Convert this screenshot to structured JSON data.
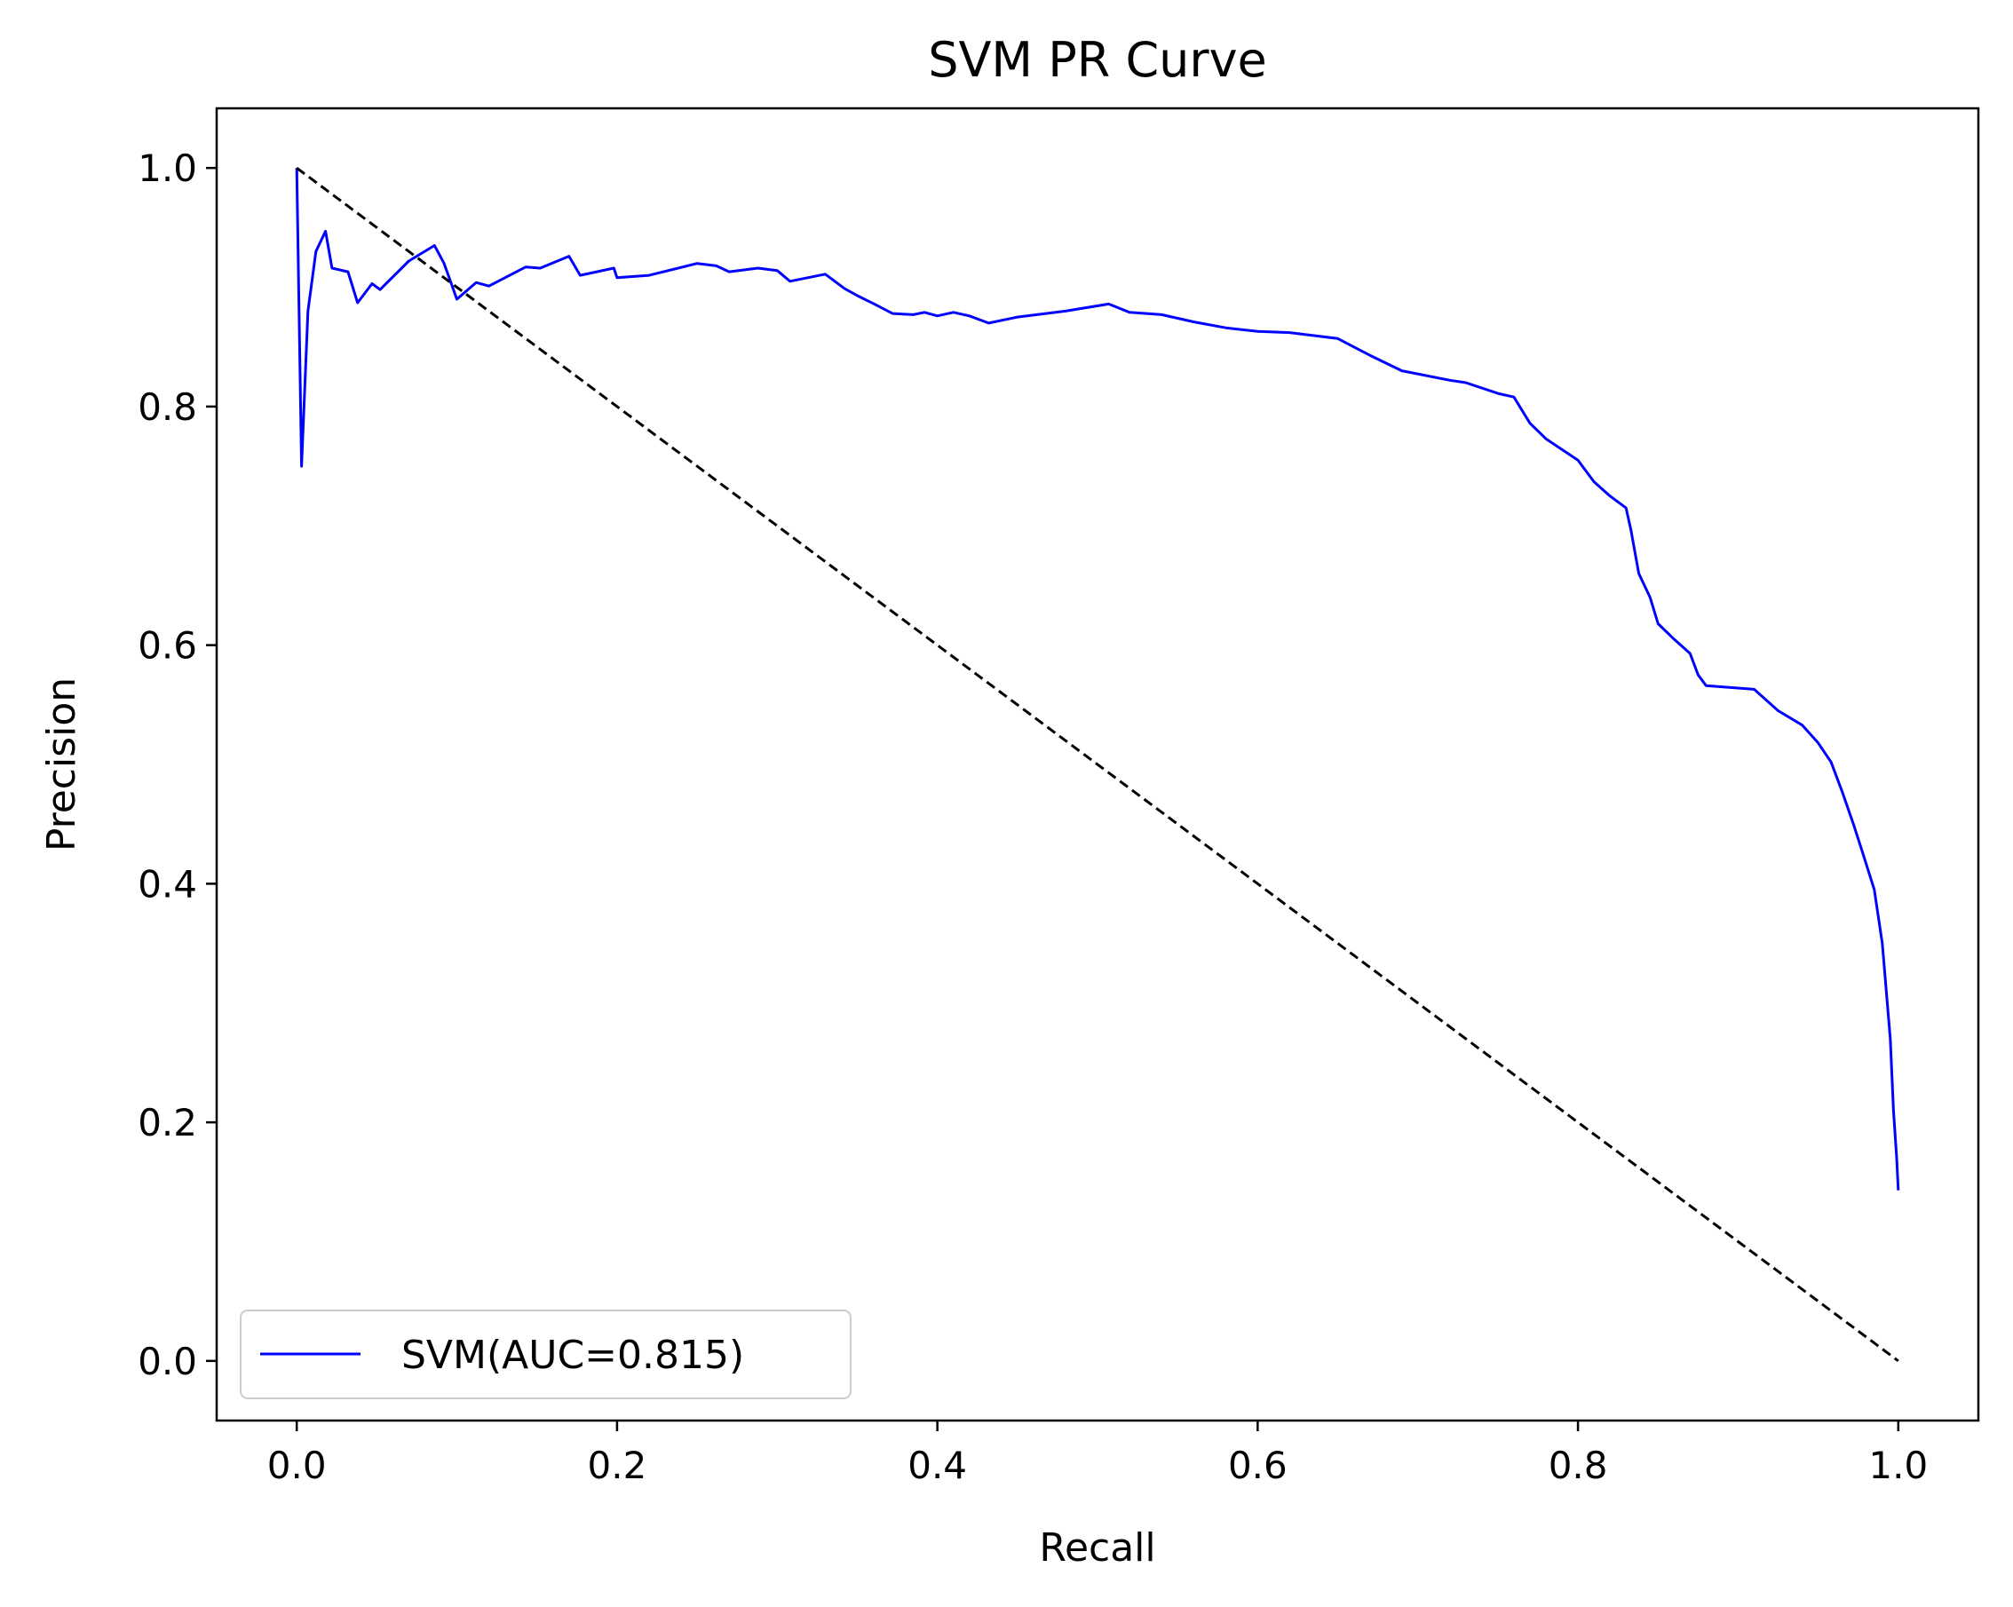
{
  "chart_data": {
    "type": "line",
    "title": "SVM PR Curve",
    "xlabel": "Recall",
    "ylabel": "Precision",
    "xlim": [
      -0.05,
      1.05
    ],
    "ylim": [
      -0.05,
      1.05
    ],
    "xticks": [
      0.0,
      0.2,
      0.4,
      0.6,
      0.8,
      1.0
    ],
    "yticks": [
      0.0,
      0.2,
      0.4,
      0.6,
      0.8,
      1.0
    ],
    "xtick_labels": [
      "0.0",
      "0.2",
      "0.4",
      "0.6",
      "0.8",
      "1.0"
    ],
    "ytick_labels": [
      "0.0",
      "0.2",
      "0.4",
      "0.6",
      "0.8",
      "1.0"
    ],
    "grid": false,
    "legend_position": "lower-left",
    "series": [
      {
        "name": "SVM(AUC=0.815)",
        "color": "#0000ff",
        "style": "solid",
        "x": [
          0.0,
          0.003,
          0.007,
          0.012,
          0.018,
          0.022,
          0.032,
          0.038,
          0.047,
          0.052,
          0.07,
          0.086,
          0.092,
          0.096,
          0.1,
          0.112,
          0.12,
          0.143,
          0.152,
          0.17,
          0.177,
          0.198,
          0.2,
          0.22,
          0.25,
          0.262,
          0.27,
          0.288,
          0.3,
          0.308,
          0.33,
          0.342,
          0.35,
          0.362,
          0.372,
          0.385,
          0.392,
          0.4,
          0.41,
          0.42,
          0.432,
          0.45,
          0.48,
          0.507,
          0.52,
          0.54,
          0.56,
          0.58,
          0.6,
          0.62,
          0.65,
          0.67,
          0.69,
          0.72,
          0.73,
          0.75,
          0.76,
          0.77,
          0.78,
          0.8,
          0.81,
          0.82,
          0.83,
          0.833,
          0.838,
          0.845,
          0.85,
          0.86,
          0.87,
          0.875,
          0.88,
          0.91,
          0.925,
          0.94,
          0.95,
          0.958,
          0.965,
          0.972,
          0.978,
          0.985,
          0.99,
          0.995,
          0.997,
          0.999,
          1.0
        ],
        "y": [
          1.0,
          0.75,
          0.88,
          0.93,
          0.947,
          0.916,
          0.913,
          0.887,
          0.903,
          0.898,
          0.922,
          0.935,
          0.92,
          0.905,
          0.89,
          0.904,
          0.901,
          0.917,
          0.916,
          0.926,
          0.91,
          0.916,
          0.908,
          0.91,
          0.92,
          0.918,
          0.913,
          0.916,
          0.914,
          0.905,
          0.911,
          0.899,
          0.893,
          0.885,
          0.878,
          0.877,
          0.879,
          0.876,
          0.879,
          0.876,
          0.87,
          0.875,
          0.88,
          0.886,
          0.879,
          0.877,
          0.871,
          0.866,
          0.863,
          0.862,
          0.857,
          0.843,
          0.83,
          0.822,
          0.82,
          0.811,
          0.808,
          0.786,
          0.773,
          0.755,
          0.737,
          0.725,
          0.715,
          0.697,
          0.66,
          0.64,
          0.618,
          0.605,
          0.593,
          0.575,
          0.566,
          0.563,
          0.545,
          0.533,
          0.518,
          0.502,
          0.477,
          0.45,
          0.425,
          0.395,
          0.35,
          0.27,
          0.21,
          0.17,
          0.143
        ]
      },
      {
        "name": "",
        "color": "#000000",
        "style": "dashed",
        "x": [
          0.0,
          1.0
        ],
        "y": [
          1.0,
          0.0
        ]
      }
    ]
  }
}
